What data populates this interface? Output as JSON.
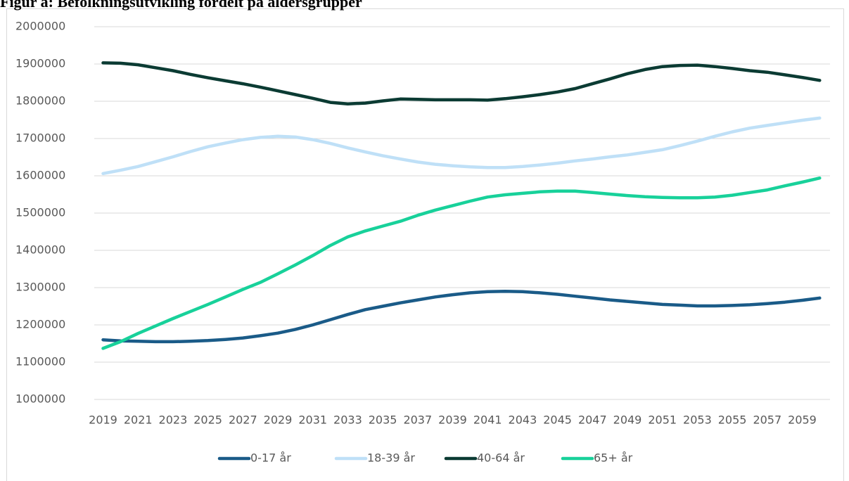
{
  "chart_data": {
    "type": "line",
    "title": "Figur a: Befolkningsutvikling fordelt på aldersgrupper",
    "categories": [
      "2019",
      null,
      "2021",
      null,
      "2023",
      null,
      "2025",
      null,
      "2027",
      null,
      "2029",
      null,
      "2031",
      null,
      "2033",
      null,
      "2035",
      null,
      "2037",
      null,
      "2039",
      null,
      "2041",
      null,
      "2043",
      null,
      "2045",
      null,
      "2047",
      null,
      "2049",
      null,
      "2051",
      null,
      "2053",
      null,
      "2055",
      null,
      "2057",
      null,
      "2059",
      null
    ],
    "series": [
      {
        "name": "0-17 år",
        "color": "#1a5b88",
        "values": [
          1160000,
          1157000,
          1156000,
          1155000,
          1155000,
          1156000,
          1158000,
          1161000,
          1165000,
          1171000,
          1178000,
          1188000,
          1200000,
          1214000,
          1228000,
          1241000,
          1250000,
          1259000,
          1267000,
          1275000,
          1281000,
          1286000,
          1289000,
          1290000,
          1289000,
          1286000,
          1282000,
          1277000,
          1272000,
          1267000,
          1263000,
          1259000,
          1255000,
          1253000,
          1251000,
          1251000,
          1252000,
          1254000,
          1257000,
          1261000,
          1266000,
          1272000
        ]
      },
      {
        "name": "18-39 år",
        "color": "#bfe0f7",
        "values": [
          1606000,
          1615000,
          1625000,
          1638000,
          1651000,
          1665000,
          1678000,
          1688000,
          1697000,
          1703000,
          1706000,
          1704000,
          1697000,
          1687000,
          1675000,
          1664000,
          1654000,
          1645000,
          1637000,
          1631000,
          1627000,
          1624000,
          1622000,
          1622000,
          1625000,
          1629000,
          1634000,
          1640000,
          1645000,
          1651000,
          1656000,
          1663000,
          1670000,
          1681000,
          1693000,
          1706000,
          1718000,
          1728000,
          1735000,
          1742000,
          1749000,
          1755000
        ]
      },
      {
        "name": "40-64 år",
        "color": "#0b3b33",
        "values": [
          1903000,
          1902000,
          1898000,
          1890000,
          1882000,
          1872000,
          1863000,
          1855000,
          1847000,
          1838000,
          1828000,
          1818000,
          1808000,
          1797000,
          1793000,
          1795000,
          1801000,
          1806000,
          1805000,
          1804000,
          1804000,
          1804000,
          1803000,
          1807000,
          1812000,
          1818000,
          1825000,
          1834000,
          1847000,
          1860000,
          1874000,
          1885000,
          1893000,
          1896000,
          1897000,
          1893000,
          1888000,
          1882000,
          1878000,
          1871000,
          1864000,
          1856000
        ]
      },
      {
        "name": "65+ år",
        "color": "#18d19a",
        "values": [
          1137000,
          1155000,
          1177000,
          1197000,
          1217000,
          1236000,
          1255000,
          1275000,
          1295000,
          1314000,
          1337000,
          1361000,
          1386000,
          1413000,
          1436000,
          1452000,
          1465000,
          1478000,
          1494000,
          1508000,
          1520000,
          1532000,
          1543000,
          1549000,
          1553000,
          1557000,
          1559000,
          1559000,
          1555000,
          1551000,
          1547000,
          1544000,
          1542000,
          1541000,
          1541000,
          1543000,
          1548000,
          1555000,
          1562000,
          1573000,
          1583000,
          1594000
        ]
      }
    ],
    "ylim": [
      1000000,
      2000000
    ],
    "yticks": [
      1000000,
      1100000,
      1200000,
      1300000,
      1400000,
      1500000,
      1600000,
      1700000,
      1800000,
      1900000,
      2000000
    ],
    "grid": true,
    "legend": "bottom"
  }
}
